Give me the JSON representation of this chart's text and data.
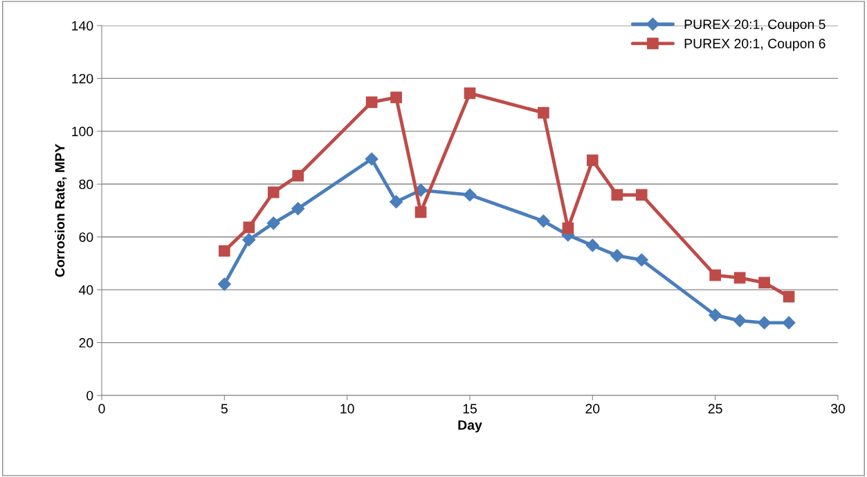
{
  "chart_data": {
    "type": "line",
    "xlabel": "Day",
    "ylabel": "Corrosion Rate, MPY",
    "xlim": [
      0,
      30
    ],
    "xticks": [
      0,
      5,
      10,
      15,
      20,
      25,
      30
    ],
    "ylim": [
      0,
      140
    ],
    "yticks": [
      0,
      20,
      40,
      60,
      80,
      100,
      120,
      140
    ],
    "grid": "y",
    "legend": "top right",
    "line_style": "solid",
    "series": [
      {
        "name": "PUREX 20:1, Coupon 5",
        "color": "#4a7ebb",
        "marker": "diamond",
        "x": [
          5,
          6,
          7,
          8,
          11,
          12,
          13,
          15,
          18,
          19,
          20,
          21,
          22,
          25,
          26,
          27,
          28
        ],
        "values": [
          42.1,
          58.9,
          65.2,
          70.7,
          89.5,
          73.3,
          77.7,
          75.9,
          66,
          60.7,
          56.8,
          52.9,
          51.3,
          30.4,
          28.3,
          27.5,
          27.5
        ]
      },
      {
        "name": "PUREX 20:1, Coupon 6",
        "color": "#be4b48",
        "marker": "square",
        "x": [
          5,
          6,
          7,
          8,
          11,
          12,
          13,
          15,
          18,
          19,
          20,
          21,
          22,
          25,
          26,
          27,
          28
        ],
        "values": [
          54.7,
          63.6,
          76.9,
          83.2,
          111,
          112.8,
          69.4,
          114.4,
          107,
          63.3,
          89,
          75.9,
          75.9,
          45.5,
          44.5,
          42.7,
          37.4
        ]
      }
    ]
  }
}
